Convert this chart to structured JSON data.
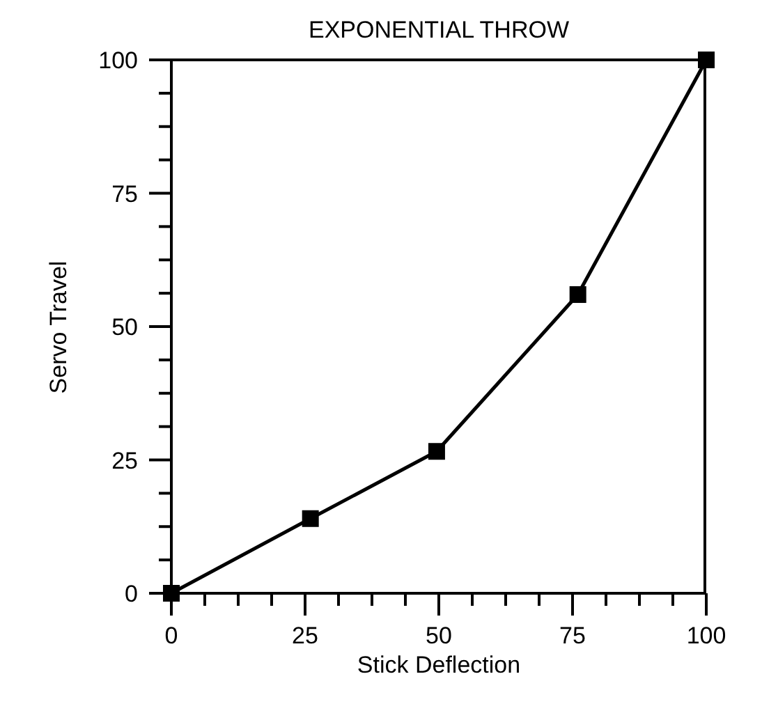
{
  "chart_data": {
    "type": "line",
    "title": "EXPONENTIAL THROW",
    "xlabel": "Stick Deflection",
    "ylabel": "Servo Travel",
    "x": [
      0,
      26,
      49.6,
      76,
      100
    ],
    "series": [
      {
        "color": "#000000",
        "values": [
          0,
          14,
          26.6,
          56,
          100
        ]
      }
    ],
    "xlim": [
      0,
      100
    ],
    "ylim": [
      0,
      100
    ],
    "xticks": [
      0,
      {
        "value": 6.25,
        "label": null
      },
      {
        "value": 12.5,
        "label": null
      },
      {
        "value": 18.75,
        "label": null
      },
      25,
      {
        "value": 31.25,
        "label": null
      },
      {
        "value": 37.5,
        "label": null
      },
      {
        "value": 43.75,
        "label": null
      },
      50,
      {
        "value": 56.25,
        "label": null
      },
      {
        "value": 62.5,
        "label": null
      },
      {
        "value": 68.75,
        "label": null
      },
      75,
      {
        "value": 81.25,
        "label": null
      },
      {
        "value": 87.5,
        "label": null
      },
      {
        "value": 93.75,
        "label": null
      },
      100
    ],
    "yticks": [
      0,
      {
        "value": 6.25,
        "label": null
      },
      {
        "value": 12.5,
        "label": null
      },
      {
        "value": 18.75,
        "label": null
      },
      25,
      {
        "value": 31.25,
        "label": null
      },
      {
        "value": 37.5,
        "label": null
      },
      {
        "value": 43.75,
        "label": null
      },
      50,
      {
        "value": 56.25,
        "label": null
      },
      {
        "value": 62.5,
        "label": null
      },
      {
        "value": 68.75,
        "label": null
      },
      75,
      {
        "value": 81.25,
        "label": null
      },
      {
        "value": 87.5,
        "label": null
      },
      {
        "value": 93.75,
        "label": null
      },
      100
    ],
    "grid": false,
    "legend": false,
    "marker": "square",
    "line_style": "solid"
  }
}
